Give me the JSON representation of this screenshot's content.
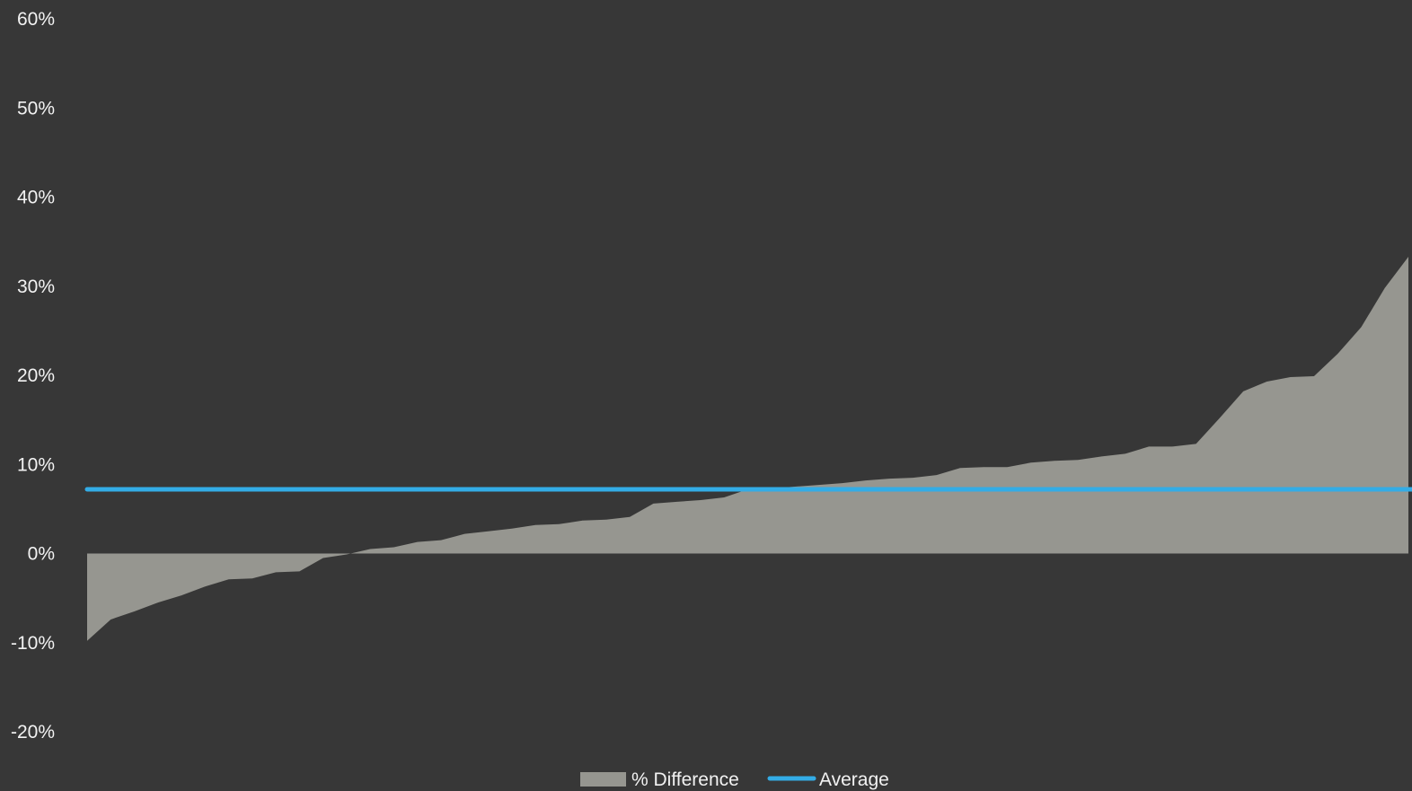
{
  "chart_data": {
    "type": "area",
    "title": "",
    "xlabel": "",
    "ylabel": "",
    "ylim": [
      -20,
      60
    ],
    "y_ticks": [
      60,
      50,
      40,
      30,
      20,
      10,
      0,
      -10,
      -20
    ],
    "y_tick_labels": [
      "60%",
      "50%",
      "40%",
      "30%",
      "20%",
      "10%",
      "0%",
      "-10%",
      "-20%"
    ],
    "y_unit": "percent",
    "grid": false,
    "legend_position": "bottom",
    "series": [
      {
        "name": "% Difference",
        "type": "area",
        "color": "#969690",
        "values": [
          -9.8,
          -7.4,
          -6.5,
          -5.5,
          -4.7,
          -3.7,
          -2.9,
          -2.8,
          -2.1,
          -2.0,
          -0.5,
          -0.1,
          0.5,
          0.7,
          1.3,
          1.5,
          2.2,
          2.5,
          2.8,
          3.2,
          3.3,
          3.7,
          3.8,
          4.1,
          5.6,
          5.8,
          6.0,
          6.3,
          7.2,
          7.3,
          7.5,
          7.7,
          7.9,
          8.2,
          8.4,
          8.5,
          8.8,
          9.6,
          9.7,
          9.7,
          10.2,
          10.4,
          10.5,
          10.9,
          11.2,
          12.0,
          12.0,
          12.3,
          15.2,
          18.2,
          19.3,
          19.8,
          19.9,
          22.4,
          25.4,
          29.8,
          33.3
        ]
      },
      {
        "name": "Average",
        "type": "line",
        "color": "#33ace6",
        "value": 7.2
      }
    ]
  }
}
